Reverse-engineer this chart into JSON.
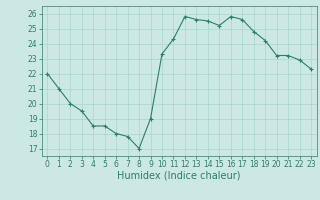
{
  "x": [
    0,
    1,
    2,
    3,
    4,
    5,
    6,
    7,
    8,
    9,
    10,
    11,
    12,
    13,
    14,
    15,
    16,
    17,
    18,
    19,
    20,
    21,
    22,
    23
  ],
  "y": [
    22.0,
    21.0,
    20.0,
    19.5,
    18.5,
    18.5,
    18.0,
    17.8,
    17.0,
    19.0,
    23.3,
    24.3,
    25.8,
    25.6,
    25.5,
    25.2,
    25.8,
    25.6,
    24.8,
    24.2,
    23.2,
    23.2,
    22.9,
    22.3
  ],
  "line_color": "#2d7d6e",
  "marker": "+",
  "marker_size": 3,
  "marker_edge_width": 0.8,
  "bg_color": "#cce8e4",
  "grid_color": "#aad4ce",
  "xlabel": "Humidex (Indice chaleur)",
  "xlim": [
    -0.5,
    23.5
  ],
  "ylim": [
    16.5,
    26.5
  ],
  "yticks": [
    17,
    18,
    19,
    20,
    21,
    22,
    23,
    24,
    25,
    26
  ],
  "xticks": [
    0,
    1,
    2,
    3,
    4,
    5,
    6,
    7,
    8,
    9,
    10,
    11,
    12,
    13,
    14,
    15,
    16,
    17,
    18,
    19,
    20,
    21,
    22,
    23
  ],
  "tick_color": "#2d7d6e",
  "label_color": "#2d7d6e",
  "axis_color": "#2d7d6e",
  "xlabel_fontsize": 7,
  "tick_fontsize": 5.5,
  "line_width": 0.8
}
